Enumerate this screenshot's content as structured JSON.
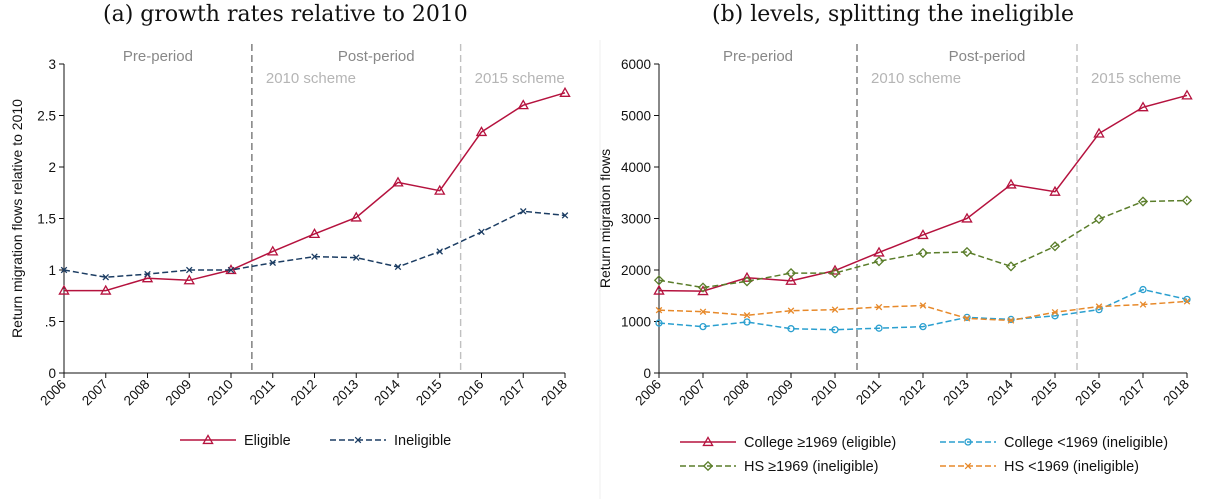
{
  "panels": [
    {
      "title": "(a) growth rates relative to 2010",
      "chart_data": {
        "type": "line",
        "xlabel": "",
        "ylabel": "Return migration flows relative to 2010",
        "x": [
          2006,
          2007,
          2008,
          2009,
          2010,
          2011,
          2012,
          2013,
          2014,
          2015,
          2016,
          2017,
          2018
        ],
        "xlim": [
          2006,
          2018
        ],
        "ylim": [
          0,
          3
        ],
        "yticks": [
          0,
          0.5,
          1,
          1.5,
          2,
          2.5,
          3
        ],
        "ytick_labels": [
          "0",
          ".5",
          "1",
          "1.5",
          "2",
          "2.5",
          "3"
        ],
        "grid": false,
        "legend_placement": "bottom",
        "annotations": {
          "pre_period": "Pre-period",
          "post_period": "Post-period",
          "scheme_2010": "2010 scheme",
          "scheme_2015": "2015 scheme"
        },
        "vlines": [
          2010.5,
          2015.5
        ],
        "series": [
          {
            "name": "Eligible",
            "color": "#b5123e",
            "dash": "solid",
            "marker": "triangle",
            "values": [
              0.8,
              0.8,
              0.92,
              0.9,
              1.0,
              1.18,
              1.35,
              1.51,
              1.85,
              1.77,
              2.34,
              2.6,
              2.72
            ]
          },
          {
            "name": "Ineligible",
            "color": "#1c3d63",
            "dash": "dashed",
            "marker": "x",
            "values": [
              1.0,
              0.93,
              0.96,
              1.0,
              1.0,
              1.07,
              1.13,
              1.12,
              1.03,
              1.18,
              1.37,
              1.57,
              1.53
            ]
          }
        ]
      }
    },
    {
      "title": "(b) levels, splitting the ineligible",
      "chart_data": {
        "type": "line",
        "xlabel": "",
        "ylabel": "Return migration flows",
        "x": [
          2006,
          2007,
          2008,
          2009,
          2010,
          2011,
          2012,
          2013,
          2014,
          2015,
          2016,
          2017,
          2018
        ],
        "xlim": [
          2006,
          2018
        ],
        "ylim": [
          0,
          6000
        ],
        "yticks": [
          0,
          1000,
          2000,
          3000,
          4000,
          5000,
          6000
        ],
        "ytick_labels": [
          "0",
          "1000",
          "2000",
          "3000",
          "4000",
          "5000",
          "6000"
        ],
        "grid": false,
        "legend_placement": "bottom",
        "annotations": {
          "pre_period": "Pre-period",
          "post_period": "Post-period",
          "scheme_2010": "2010 scheme",
          "scheme_2015": "2015 scheme"
        },
        "vlines": [
          2010.5,
          2015.5
        ],
        "series": [
          {
            "name": "College ≥1969 (eligible)",
            "color": "#b5123e",
            "dash": "solid",
            "marker": "triangle",
            "values": [
              1600,
              1590,
              1850,
              1790,
              1990,
              2340,
              2680,
              3000,
              3660,
              3520,
              4650,
              5160,
              5390
            ]
          },
          {
            "name": "College <1969 (ineligible)",
            "color": "#2a9fcf",
            "dash": "dashed",
            "marker": "circle",
            "values": [
              970,
              900,
              990,
              860,
              840,
              870,
              900,
              1080,
              1040,
              1110,
              1230,
              1620,
              1430
            ]
          },
          {
            "name": "HS ≥1969 (ineligible)",
            "color": "#5a7d2a",
            "dash": "dashed",
            "marker": "diamond",
            "values": [
              1800,
              1660,
              1780,
              1940,
              1940,
              2170,
              2330,
              2350,
              2070,
              2460,
              2990,
              3330,
              3350
            ]
          },
          {
            "name": "HS <1969 (ineligible)",
            "color": "#e7892a",
            "dash": "dashed",
            "marker": "x",
            "values": [
              1220,
              1190,
              1120,
              1210,
              1230,
              1280,
              1310,
              1060,
              1020,
              1180,
              1290,
              1330,
              1390
            ]
          }
        ]
      }
    }
  ]
}
